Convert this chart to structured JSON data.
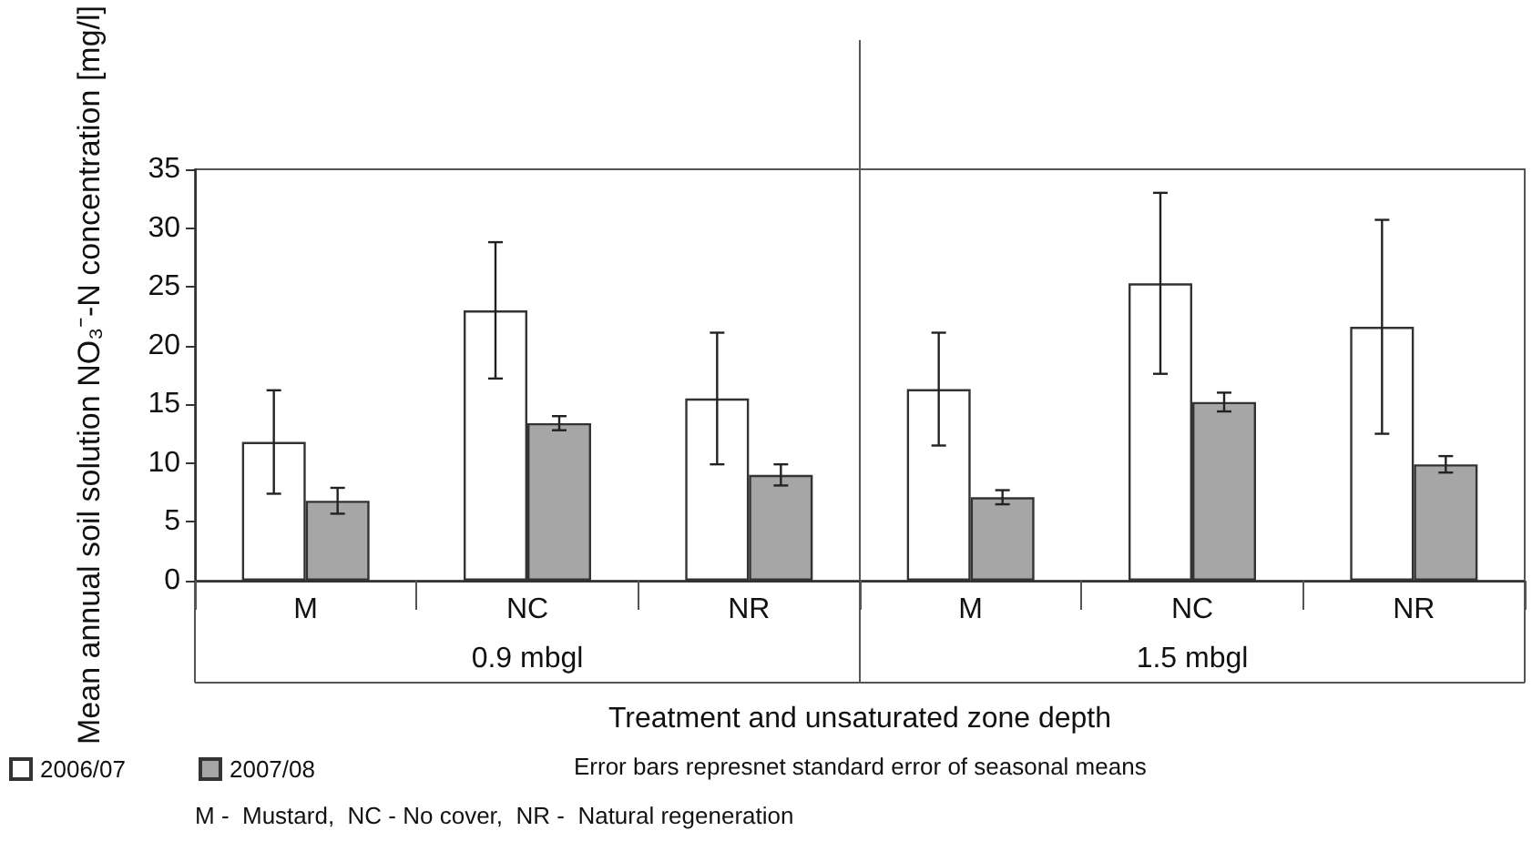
{
  "chart_data": {
    "type": "bar",
    "xlabel": "Treatment and unsaturated zone depth",
    "ylabel": "Mean annual soil solution NO₃⁻-N concentration [mg/l]",
    "categories": [
      "M",
      "NC",
      "NR",
      "M",
      "NC",
      "NR"
    ],
    "series": [
      {
        "name": "2006/07",
        "color": "#ffffff",
        "values": [
          11.8,
          23.0,
          15.5,
          16.3,
          25.3,
          21.6
        ],
        "errors": [
          4.4,
          5.8,
          5.6,
          4.8,
          7.7,
          9.1
        ]
      },
      {
        "name": "2007/08",
        "color": "#a6a6a6",
        "values": [
          6.8,
          13.4,
          9.0,
          7.1,
          15.2,
          9.9
        ],
        "errors": [
          1.1,
          0.6,
          0.9,
          0.6,
          0.8,
          0.7
        ]
      }
    ],
    "ylim": [
      0,
      35
    ],
    "yticks": [
      0,
      5,
      10,
      15,
      20,
      25,
      30,
      35
    ],
    "grid": false,
    "legend": "bottom left",
    "annotations": [
      "0.9 mbgl",
      "1.5 mbgl",
      "Error bars represnet standard error of seasonal means",
      "M -  Mustard,  NC - No cover,  NR -  Natural regeneration"
    ]
  }
}
